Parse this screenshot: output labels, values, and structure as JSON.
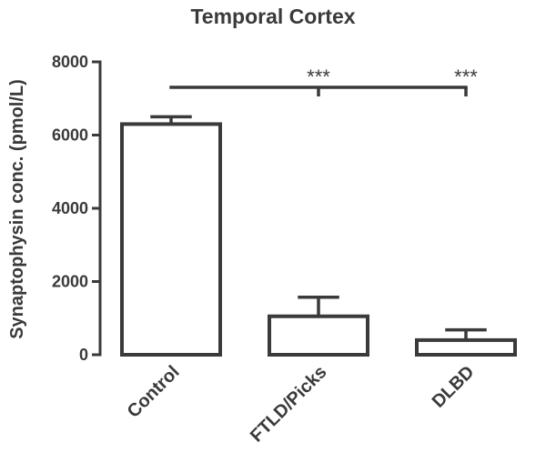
{
  "chart_data": {
    "type": "bar",
    "title": "Temporal Cortex",
    "xlabel": "",
    "ylabel": "Synaptophysin conc. (pmol/L)",
    "categories": [
      "Control",
      "FTLD/Picks",
      "DLBD"
    ],
    "values": [
      6300,
      1050,
      400
    ],
    "errors": [
      200,
      520,
      280
    ],
    "ylim": [
      0,
      8000
    ],
    "yticks": [
      "0",
      "2000",
      "4000",
      "6000",
      "8000"
    ],
    "grid": false,
    "comparison": {
      "from": "Control",
      "to": [
        "FTLD/Picks",
        "DLBD"
      ],
      "labels": [
        "***",
        "***"
      ]
    },
    "colors": {
      "bar_fill": "#ffffff",
      "stroke": "#3a3a3a",
      "text": "#3a3a3a"
    }
  }
}
